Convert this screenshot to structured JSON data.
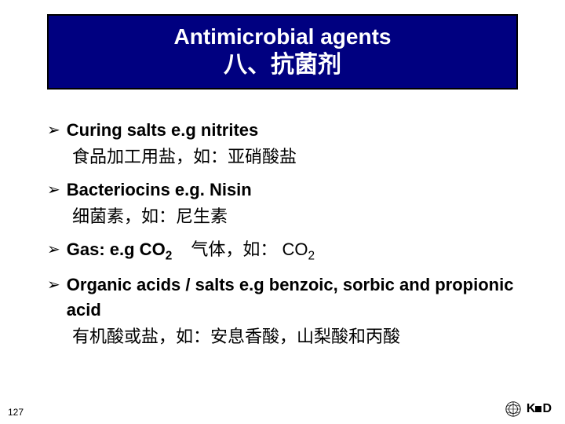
{
  "colors": {
    "title_bg": "#000080",
    "title_border": "#000000",
    "title_text": "#ffffff",
    "body_text": "#000000",
    "slide_bg": "#ffffff"
  },
  "typography": {
    "title_en_fontsize": 28,
    "title_zh_fontsize": 30,
    "body_fontsize": 22,
    "pagenum_fontsize": 12,
    "font_family": "Arial, Microsoft YaHei"
  },
  "title": {
    "en": "Antimicrobial agents",
    "zh": "八、抗菌剂"
  },
  "bullets": [
    {
      "arrow": "➢",
      "text_html": "Curing salts e.g nitrites",
      "sub": "食品加工用盐，如：亚硝酸盐"
    },
    {
      "arrow": "➢",
      "text_html": "Bacteriocins e.g. Nisin",
      "sub": "细菌素，如：尼生素"
    },
    {
      "arrow": "➢",
      "text_html": "Gas: e.g CO<sub>2</sub>",
      "inline_html": "气体，如： CO<sub>2</sub>"
    },
    {
      "arrow": "➢",
      "text_html": "Organic acids / salts e.g benzoic, sorbic and propionic acid",
      "sub": "有机酸或盐，如：安息香酸，山梨酸和丙酸"
    }
  ],
  "page_number": "127",
  "logos": {
    "who": "who-emblem",
    "kd": "KD"
  }
}
